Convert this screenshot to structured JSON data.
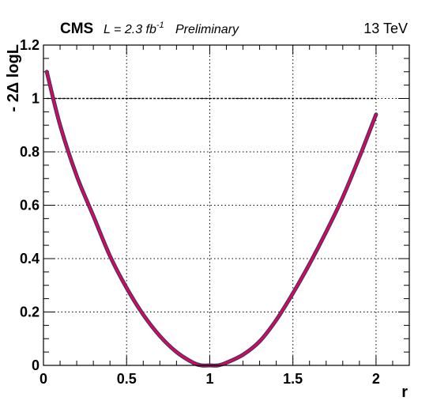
{
  "header": {
    "experiment": "CMS",
    "lumi_prefix": "L = 2.3 fb",
    "lumi_exponent": "-1",
    "status": "Preliminary",
    "energy": "13 TeV"
  },
  "chart_data": {
    "type": "line",
    "xlabel": "r",
    "ylabel": "- 2Δ logL",
    "xlim": [
      0,
      2.2
    ],
    "ylim": [
      0,
      1.2
    ],
    "x_ticks": [
      "0",
      "0.5",
      "1",
      "1.5",
      "2"
    ],
    "y_ticks": [
      "0",
      "0.2",
      "0.4",
      "0.6",
      "0.8",
      "1",
      "1.2"
    ],
    "grid": true,
    "threshold_line": {
      "y": 1.0,
      "style": "dashed"
    },
    "series": [
      {
        "color": "#e8005a",
        "outline_color": "#3a3a6a",
        "x": [
          0.02,
          0.1,
          0.2,
          0.3,
          0.4,
          0.5,
          0.6,
          0.7,
          0.8,
          0.9,
          0.95,
          1.0,
          1.05,
          1.1,
          1.2,
          1.3,
          1.4,
          1.5,
          1.6,
          1.7,
          1.8,
          1.9,
          2.0
        ],
        "y": [
          1.1,
          0.9,
          0.71,
          0.56,
          0.41,
          0.29,
          0.19,
          0.11,
          0.05,
          0.01,
          0.0,
          0.0,
          0.0,
          0.01,
          0.04,
          0.09,
          0.17,
          0.27,
          0.38,
          0.5,
          0.63,
          0.78,
          0.94
        ]
      }
    ]
  }
}
